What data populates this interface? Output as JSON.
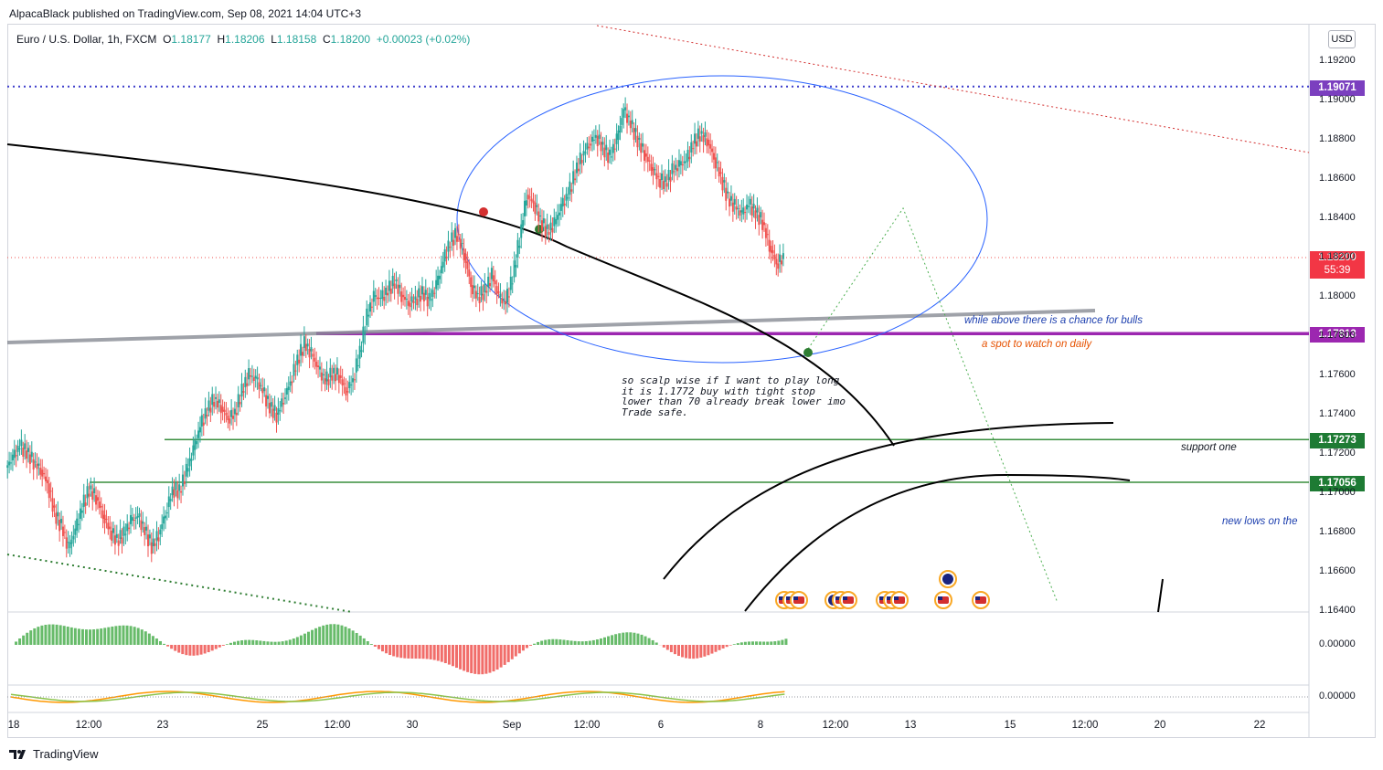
{
  "header": {
    "published": "AlpacaBlack published on TradingView.com, Sep 08, 2021 14:04 UTC+3"
  },
  "legend": {
    "symbol": "Euro / U.S. Dollar, 1h, FXCM",
    "open_label": "O",
    "open": "1.18177",
    "high_label": "H",
    "high": "1.18206",
    "low_label": "L",
    "low": "1.18158",
    "close_label": "C",
    "close": "1.18200",
    "change": "+0.00023 (+0.02%)"
  },
  "currency_button": "USD",
  "footer": {
    "brand": "TradingView"
  },
  "annotations": {
    "bulls": "while above there is a chance for bulls",
    "daily": "a spot to watch on daily",
    "support": "support one",
    "new_lows": "new lows on the",
    "scalp": "so scalp wise if I want to play long\nit is 1.1772 buy with tight stop\nlower than 70 already break lower imo\nTrade safe."
  },
  "price_tags": {
    "top": "1.19071",
    "last": "1.18200",
    "countdown": "55:39",
    "purple": "1.17813",
    "green1": "1.17273",
    "green2": "1.17056"
  },
  "colors": {
    "up": "#26a69a",
    "down": "#ef5350",
    "up_volume": "#4caf50",
    "purple": "#9c27b0",
    "dotted_blue": "#3f3fcc",
    "green_line": "#388e3c",
    "ellipse": "#2962ff",
    "red_tag": "#f23645",
    "tag_purple": "#7b3fbf",
    "tag_green": "#1e7b34"
  },
  "chart_data": {
    "type": "candlestick",
    "symbol": "EURUSD",
    "interval": "1h",
    "y_ticks": [
      "1.19200",
      "1.19000",
      "1.18800",
      "1.18600",
      "1.18400",
      "1.18200",
      "1.18000",
      "1.17800",
      "1.17600",
      "1.17400",
      "1.17200",
      "1.17000",
      "1.16800",
      "1.16600",
      "1.16400"
    ],
    "ylim": [
      1.164,
      1.1925
    ],
    "x_ticks": [
      "18",
      "12:00",
      "23",
      "25",
      "12:00",
      "30",
      "Sep",
      "12:00",
      "6",
      "8",
      "12:00",
      "13",
      "15",
      "12:00",
      "20",
      "22"
    ],
    "levels": [
      {
        "name": "resistance",
        "value": 1.19071,
        "style": "dotted"
      },
      {
        "name": "last",
        "value": 1.182,
        "style": "dotted"
      },
      {
        "name": "daily spot",
        "value": 1.17813,
        "style": "solid"
      },
      {
        "name": "support one",
        "value": 1.17273,
        "style": "solid"
      },
      {
        "name": "lower support",
        "value": 1.17056,
        "style": "solid"
      }
    ],
    "close_path": [
      1.1718,
      1.1724,
      1.1721,
      1.1716,
      1.1712,
      1.1705,
      1.169,
      1.1683,
      1.1672,
      1.1681,
      1.1693,
      1.1702,
      1.1698,
      1.1689,
      1.1681,
      1.1676,
      1.1679,
      1.1686,
      1.1688,
      1.1681,
      1.1673,
      1.1679,
      1.169,
      1.1702,
      1.1701,
      1.1711,
      1.1722,
      1.1734,
      1.1742,
      1.1748,
      1.1744,
      1.1738,
      1.1741,
      1.1752,
      1.176,
      1.1758,
      1.1752,
      1.1744,
      1.174,
      1.1748,
      1.1757,
      1.1768,
      1.1776,
      1.1771,
      1.1763,
      1.1757,
      1.1761,
      1.176,
      1.1752,
      1.1758,
      1.1772,
      1.179,
      1.18,
      1.1799,
      1.1803,
      1.1808,
      1.1801,
      1.1797,
      1.1799,
      1.1802,
      1.1798,
      1.1806,
      1.1818,
      1.1828,
      1.1832,
      1.1822,
      1.1806,
      1.18,
      1.1803,
      1.1811,
      1.18,
      1.1797,
      1.181,
      1.183,
      1.1852,
      1.1848,
      1.1839,
      1.1833,
      1.1837,
      1.1846,
      1.1852,
      1.1863,
      1.1872,
      1.1878,
      1.1882,
      1.1876,
      1.1871,
      1.188,
      1.1895,
      1.1888,
      1.188,
      1.1873,
      1.1866,
      1.186,
      1.1858,
      1.1864,
      1.1867,
      1.1869,
      1.1878,
      1.1883,
      1.188,
      1.1871,
      1.1861,
      1.185,
      1.1846,
      1.1842,
      1.1847,
      1.1843,
      1.1838,
      1.1826,
      1.1817,
      1.182
    ],
    "oscillator": {
      "zero_label": "0.00000"
    },
    "oscillator2": {
      "zero_label": "0.00000"
    }
  }
}
